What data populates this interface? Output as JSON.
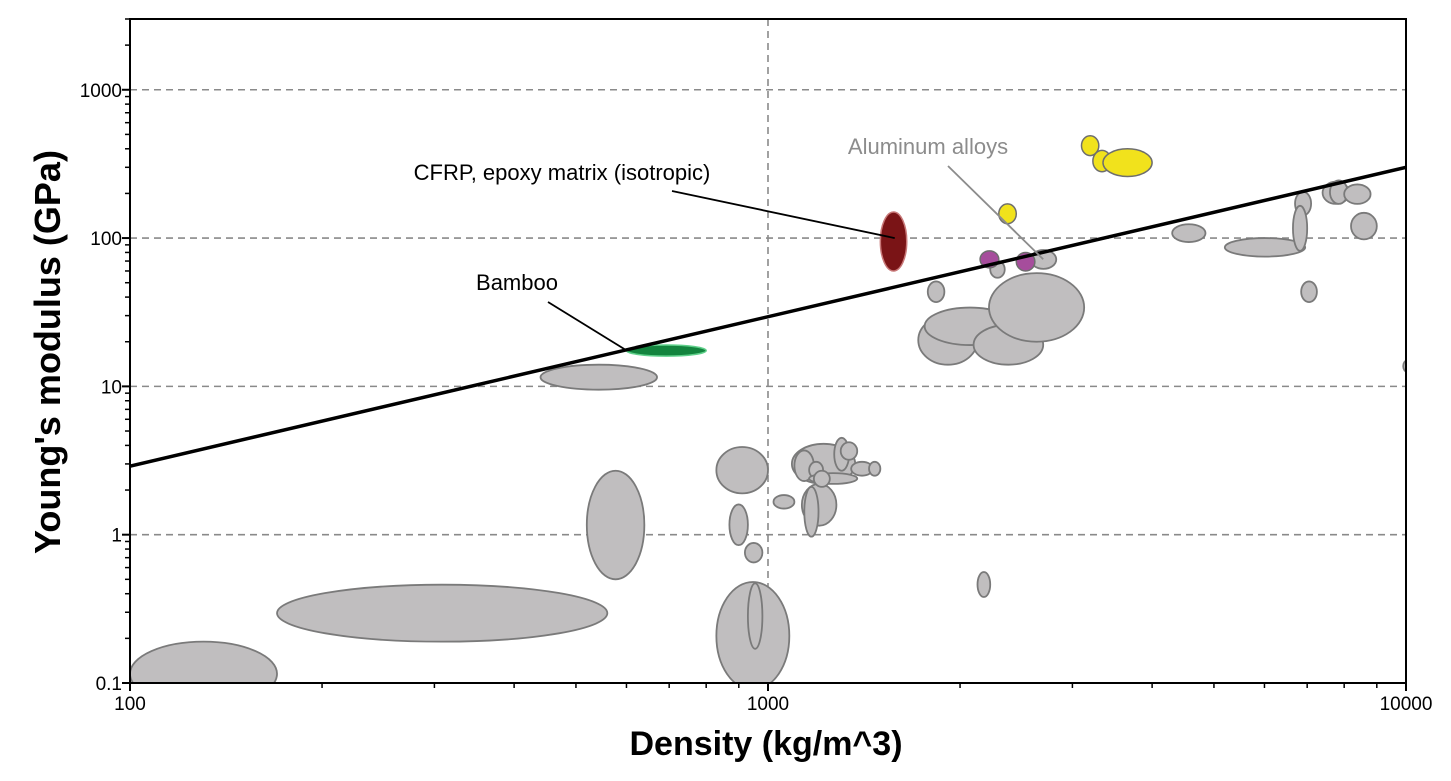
{
  "chart_data": {
    "type": "scatter",
    "subtype": "material-property-bubble",
    "xlabel": "Density (kg/m^3)",
    "ylabel": "Young's modulus (GPa)",
    "xscale": "log",
    "yscale": "log",
    "xlim": [
      100,
      10000
    ],
    "ylim": [
      0.1,
      3000
    ],
    "x_ticks": [
      {
        "value": 100,
        "label": "100"
      },
      {
        "value": 1000,
        "label": "1000"
      },
      {
        "value": 10000,
        "label": "10000"
      }
    ],
    "y_ticks": [
      {
        "value": 0.1,
        "label": "0.1"
      },
      {
        "value": 1,
        "label": "1"
      },
      {
        "value": 10,
        "label": "10"
      },
      {
        "value": 100,
        "label": "100"
      },
      {
        "value": 1000,
        "label": "1000"
      }
    ],
    "grid": "dashed at major decades",
    "colors": {
      "other": "#c0bebf",
      "other_edge": "#7a7a7a",
      "cfrp": "#7a1416",
      "bamboo": "#13843e",
      "aluminum": "#a64d9c",
      "ceramic": "#f1e21c",
      "guide_line": "#000000",
      "aluminum_label": "#8c8c8c"
    },
    "guide_line": {
      "from": [
        100,
        2.9
      ],
      "to": [
        10000,
        300
      ]
    },
    "annotations": [
      {
        "text": "CFRP, epoxy matrix (isotropic)",
        "color": "#000000",
        "points_to": [
          1580,
          100
        ]
      },
      {
        "text": "Bamboo",
        "color": "#000000",
        "points_to": [
          600,
          17.5
        ]
      },
      {
        "text": "Aluminum alloys",
        "color": "#8c8c8c",
        "points_to": [
          2700,
          72
        ]
      }
    ],
    "series": [
      {
        "name": "CFRP, epoxy matrix (isotropic)",
        "color": "#7a1416",
        "points": [
          {
            "x_range": [
              1500,
              1650
            ],
            "y_range": [
              60,
              150
            ]
          }
        ]
      },
      {
        "name": "Bamboo",
        "color": "#13843e",
        "points": [
          {
            "x_range": [
              600,
              800
            ],
            "y_range": [
              16,
              19
            ]
          }
        ]
      },
      {
        "name": "Aluminum alloys",
        "color": "#a64d9c",
        "points": [
          {
            "x_range": [
              2150,
              2300
            ],
            "y_range": [
              63,
              82
            ]
          },
          {
            "x_range": [
              2450,
              2620
            ],
            "y_range": [
              60,
              80
            ]
          }
        ]
      },
      {
        "color": "#f1e21c",
        "points": [
          {
            "x_range": [
              2300,
              2450
            ],
            "y_range": [
              125,
              170
            ]
          },
          {
            "x_range": [
              3100,
              3300
            ],
            "y_range": [
              360,
              490
            ]
          },
          {
            "x_range": [
              3230,
              3450
            ],
            "y_range": [
              280,
              390
            ]
          },
          {
            "x_range": [
              3350,
              4000
            ],
            "y_range": [
              260,
              400
            ]
          }
        ]
      },
      {
        "color": "#c0bebf",
        "points": [
          {
            "x_range": [
              100,
              170
            ],
            "y_range": [
              0.07,
              0.19
            ]
          },
          {
            "x_range": [
              170,
              560
            ],
            "y_range": [
              0.19,
              0.46
            ]
          },
          {
            "x_range": [
              440,
              670
            ],
            "y_range": [
              9.5,
              14
            ]
          },
          {
            "x_range": [
              520,
              640
            ],
            "y_range": [
              0.5,
              2.7
            ]
          },
          {
            "x_range": [
              830,
              1000
            ],
            "y_range": [
              1.9,
              3.9
            ]
          },
          {
            "x_range": [
              870,
              930
            ],
            "y_range": [
              0.85,
              1.6
            ]
          },
          {
            "x_range": [
              920,
              980
            ],
            "y_range": [
              0.65,
              0.88
            ]
          },
          {
            "x_range": [
              830,
              1080
            ],
            "y_range": [
              0.09,
              0.48
            ]
          },
          {
            "x_range": [
              930,
              980
            ],
            "y_range": [
              0.17,
              0.47
            ]
          },
          {
            "x_range": [
              1020,
              1100
            ],
            "y_range": [
              1.5,
              1.85
            ]
          },
          {
            "x_range": [
              1090,
              1370
            ],
            "y_range": [
              2.2,
              4.1
            ]
          },
          {
            "x_range": [
              1100,
              1180
            ],
            "y_range": [
              2.3,
              3.7
            ]
          },
          {
            "x_range": [
              1130,
              1280
            ],
            "y_range": [
              1.15,
              2.2
            ]
          },
          {
            "x_range": [
              1140,
              1200
            ],
            "y_range": [
              0.97,
              2.1
            ]
          },
          {
            "x_range": [
              1160,
              1220
            ],
            "y_range": [
              2.4,
              3.1
            ]
          },
          {
            "x_range": [
              1160,
              1380
            ],
            "y_range": [
              2.2,
              2.6
            ]
          },
          {
            "x_range": [
              1180,
              1250
            ],
            "y_range": [
              2.1,
              2.7
            ]
          },
          {
            "x_range": [
              1270,
              1340
            ],
            "y_range": [
              2.7,
              4.5
            ]
          },
          {
            "x_range": [
              1300,
              1380
            ],
            "y_range": [
              3.2,
              4.2
            ]
          },
          {
            "x_range": [
              1350,
              1460
            ],
            "y_range": [
              2.5,
              3.1
            ]
          },
          {
            "x_range": [
              1440,
              1500
            ],
            "y_range": [
              2.5,
              3.1
            ]
          },
          {
            "x_range": [
              1780,
              1890
            ],
            "y_range": [
              37,
              51
            ]
          },
          {
            "x_range": [
              1720,
              2130
            ],
            "y_range": [
              14,
              30
            ]
          },
          {
            "x_range": [
              1760,
              2440
            ],
            "y_range": [
              19,
              34
            ]
          },
          {
            "x_range": [
              2100,
              2700
            ],
            "y_range": [
              14,
              26
            ]
          },
          {
            "x_range": [
              2220,
              3130
            ],
            "y_range": [
              20,
              58
            ]
          },
          {
            "x_range": [
              2230,
              2350
            ],
            "y_range": [
              54,
              70
            ]
          },
          {
            "x_range": [
              2130,
              2230
            ],
            "y_range": [
              0.38,
              0.56
            ]
          },
          {
            "x_range": [
              2580,
              2830
            ],
            "y_range": [
              62,
              83
            ]
          },
          {
            "x_range": [
              4300,
              4850
            ],
            "y_range": [
              94,
              124
            ]
          },
          {
            "x_range": [
              5200,
              6950
            ],
            "y_range": [
              75,
              100
            ]
          },
          {
            "x_range": [
              6700,
              7100
            ],
            "y_range": [
              142,
              205
            ]
          },
          {
            "x_range": [
              6650,
              7000
            ],
            "y_range": [
              82,
              165
            ]
          },
          {
            "x_range": [
              6850,
              7250
            ],
            "y_range": [
              37,
              51
            ]
          },
          {
            "x_range": [
              7400,
              8150
            ],
            "y_range": [
              170,
              240
            ]
          },
          {
            "x_range": [
              7600,
              8100
            ],
            "y_range": [
              170,
              245
            ]
          },
          {
            "x_range": [
              8000,
              8800
            ],
            "y_range": [
              170,
              230
            ]
          },
          {
            "x_range": [
              8200,
              9000
            ],
            "y_range": [
              98,
              148
            ]
          },
          {
            "x_range": [
              9900,
              10200
            ],
            "y_range": [
              12.5,
              15
            ]
          }
        ]
      }
    ]
  }
}
